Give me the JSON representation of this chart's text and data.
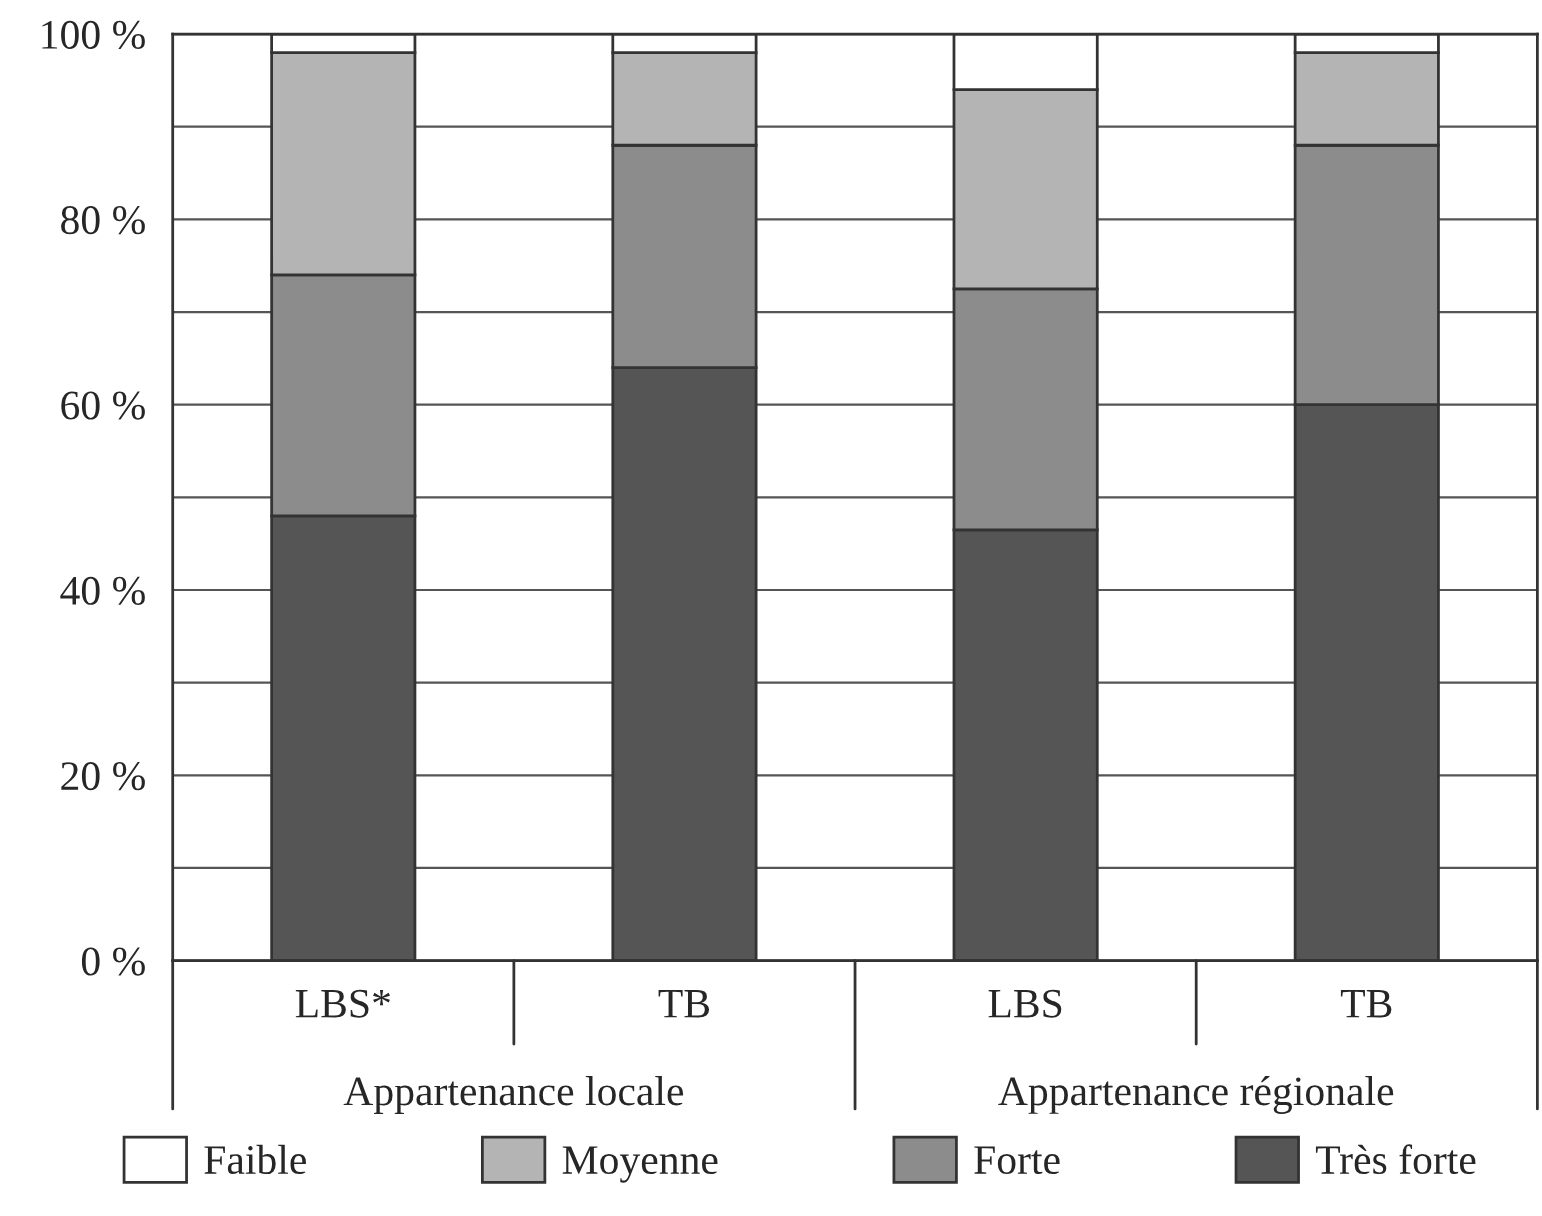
{
  "chart_data": {
    "type": "bar",
    "stacked": true,
    "categories": [
      "LBS*",
      "TB",
      "LBS",
      "TB"
    ],
    "series": [
      {
        "name": "Très forte",
        "color": "#555555",
        "values": [
          48,
          64,
          46.5,
          60
        ]
      },
      {
        "name": "Forte",
        "color": "#8c8c8c",
        "values": [
          26,
          24,
          26,
          28
        ]
      },
      {
        "name": "Moyenne",
        "color": "#b4b4b4",
        "values": [
          24,
          10,
          21.5,
          10
        ]
      },
      {
        "name": "Faible",
        "color": "#ffffff",
        "values": [
          2,
          2,
          6,
          2
        ]
      }
    ],
    "annotations": [
      "Appartenance locale",
      "Appartenance régionale"
    ],
    "ylim": [
      0,
      100
    ],
    "yticks": [
      {
        "value": 0,
        "label": "0 %"
      },
      {
        "value": 20,
        "label": "20 %"
      },
      {
        "value": 40,
        "label": "40 %"
      },
      {
        "value": 60,
        "label": "60 %"
      },
      {
        "value": 80,
        "label": "80 %"
      },
      {
        "value": 100,
        "label": "100 %"
      }
    ],
    "grid": "y",
    "legend": "bottom"
  }
}
